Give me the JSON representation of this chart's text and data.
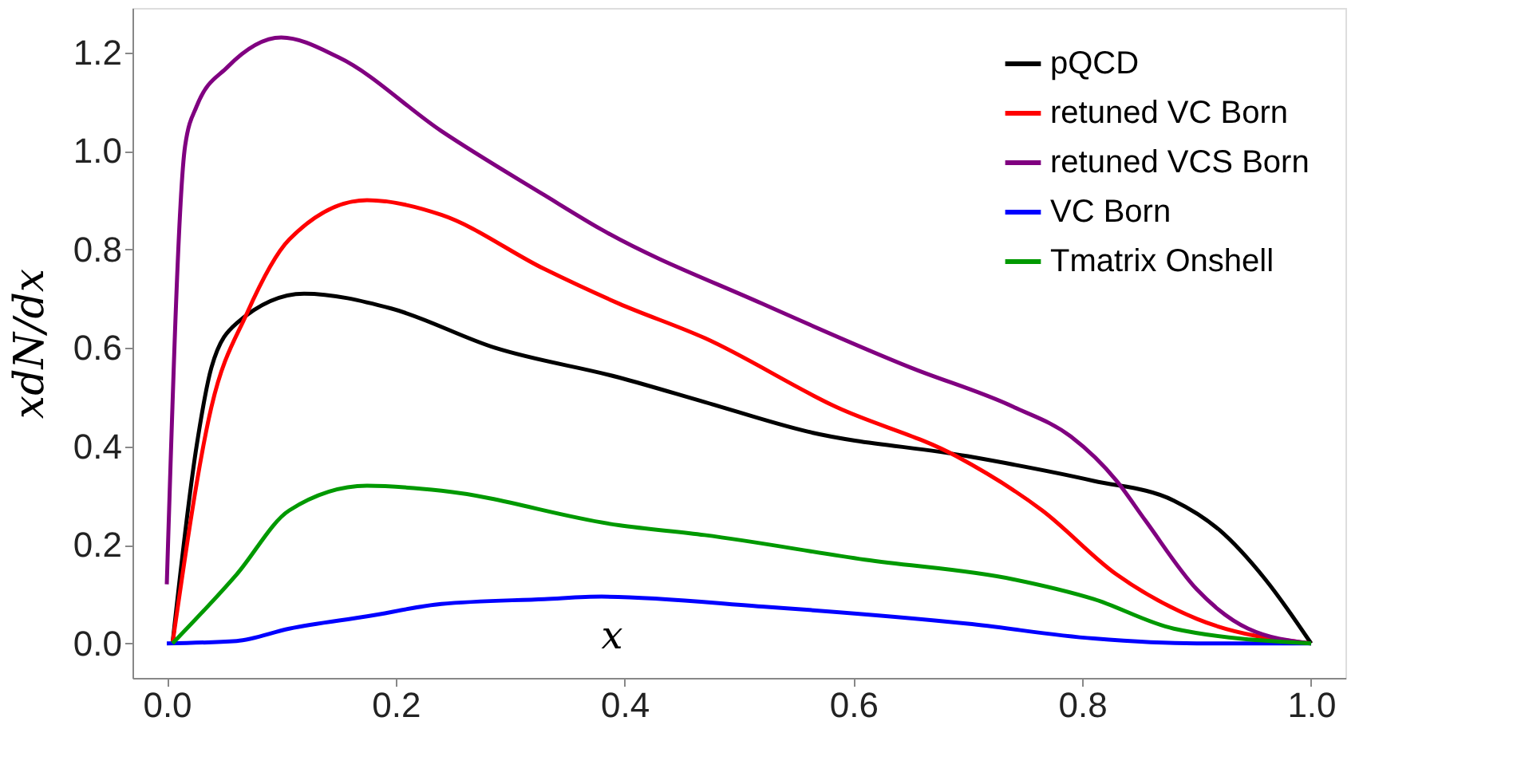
{
  "chart_data": {
    "type": "line",
    "xlabel": "x",
    "ylabel": "xdN/dx",
    "xlim": [
      -0.03,
      1.03
    ],
    "ylim": [
      -0.07,
      1.29
    ],
    "xticks": [
      {
        "value": 0,
        "label": "0.0"
      },
      0.2,
      0.4,
      0.6,
      0.8,
      {
        "value": 1,
        "label": "1.0"
      }
    ],
    "yticks": [
      {
        "value": 0,
        "label": "0.0"
      },
      0.2,
      0.4,
      0.6,
      0.8,
      {
        "value": 1,
        "label": "1.0"
      },
      1.2
    ],
    "grid": false,
    "legend": "top right",
    "marker": "none",
    "line_style": "solid",
    "series": [
      {
        "name": "pQCD",
        "color": "#000000",
        "x": [
          0.005,
          0.026,
          0.039,
          0.061,
          0.12,
          0.196,
          0.287,
          0.395,
          0.47,
          0.56,
          0.7,
          0.81,
          0.88,
          0.92,
          0.96,
          1.0
        ],
        "values": [
          0,
          0.4,
          0.56,
          0.65,
          0.71,
          0.68,
          0.6,
          0.54,
          0.49,
          0.43,
          0.38,
          0.33,
          0.29,
          0.23,
          0.13,
          0
        ]
      },
      {
        "name": "retuned VC Born",
        "color": "#ff0000",
        "x": [
          0.005,
          0.039,
          0.07,
          0.107,
          0.175,
          0.24,
          0.33,
          0.395,
          0.47,
          0.585,
          0.69,
          0.765,
          0.83,
          0.9,
          1.0
        ],
        "values": [
          0,
          0.48,
          0.67,
          0.82,
          0.9,
          0.87,
          0.76,
          0.69,
          0.62,
          0.48,
          0.38,
          0.27,
          0.14,
          0.05,
          0
        ]
      },
      {
        "name": "retuned VCS Born",
        "color": "#800080",
        "x": [
          0.0,
          0.016,
          0.026,
          0.053,
          0.1,
          0.15,
          0.24,
          0.33,
          0.38,
          0.52,
          0.65,
          0.74,
          0.79,
          0.83,
          0.855,
          0.9,
          0.945,
          1.0
        ],
        "values": [
          0.12,
          1.01,
          1.09,
          1.17,
          1.23,
          1.19,
          1.04,
          0.91,
          0.84,
          0.69,
          0.56,
          0.48,
          0.42,
          0.33,
          0.25,
          0.11,
          0.03,
          0
        ]
      },
      {
        "name": "VC Born",
        "color": "#0000ff",
        "x": [
          0.0,
          0.061,
          0.107,
          0.175,
          0.24,
          0.33,
          0.38,
          0.52,
          0.7,
          0.81,
          0.9,
          1.0
        ],
        "values": [
          0,
          0.005,
          0.03,
          0.055,
          0.08,
          0.09,
          0.095,
          0.075,
          0.04,
          0.01,
          0,
          0
        ]
      },
      {
        "name": "Tmatrix Onshell",
        "color": "#009900",
        "x": [
          0.005,
          0.061,
          0.107,
          0.175,
          0.24,
          0.395,
          0.47,
          0.61,
          0.74,
          0.81,
          0.88,
          1.0
        ],
        "values": [
          0,
          0.14,
          0.27,
          0.32,
          0.31,
          0.24,
          0.22,
          0.17,
          0.13,
          0.09,
          0.03,
          0
        ]
      }
    ]
  }
}
